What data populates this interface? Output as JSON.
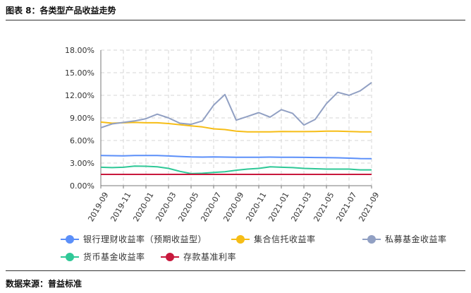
{
  "header": {
    "title": "图表 8：各类型产品收益走势"
  },
  "footer": {
    "source": "数据来源：普益标准"
  },
  "chart_data": {
    "type": "line",
    "categories": [
      "2019-09",
      "2019-10",
      "2019-11",
      "2019-12",
      "2020-01",
      "2020-02",
      "2020-03",
      "2020-04",
      "2020-05",
      "2020-06",
      "2020-07",
      "2020-08",
      "2020-09",
      "2020-10",
      "2020-11",
      "2020-12",
      "2021-01",
      "2021-02",
      "2021-03",
      "2021-04",
      "2021-05",
      "2021-06",
      "2021-07",
      "2021-08",
      "2021-09"
    ],
    "tick_labels": [
      "2019-09",
      "2019-11",
      "2020-01",
      "2020-03",
      "2020-05",
      "2020-07",
      "2020-09",
      "2020-11",
      "2021-01",
      "2021-03",
      "2021-05",
      "2021-07",
      "2021-09"
    ],
    "ylim": [
      0,
      18
    ],
    "yticks": [
      "0.00%",
      "3.00%",
      "6.00%",
      "9.00%",
      "12.00%",
      "15.00%",
      "18.00%"
    ],
    "grid": true,
    "legend_position": "bottom",
    "series": [
      {
        "name": "银行理财收益率（预期收益型）",
        "color": "#5b8ff9",
        "values": [
          4.0,
          3.98,
          3.96,
          4.0,
          4.0,
          4.0,
          3.95,
          3.88,
          3.82,
          3.8,
          3.82,
          3.8,
          3.78,
          3.78,
          3.78,
          3.8,
          3.78,
          3.78,
          3.76,
          3.74,
          3.72,
          3.7,
          3.66,
          3.6,
          3.58
        ]
      },
      {
        "name": "集合信托收益率",
        "color": "#f6bd16",
        "values": [
          8.45,
          8.3,
          8.35,
          8.4,
          8.35,
          8.35,
          8.25,
          8.1,
          7.95,
          7.8,
          7.55,
          7.45,
          7.25,
          7.15,
          7.15,
          7.15,
          7.2,
          7.18,
          7.18,
          7.2,
          7.25,
          7.25,
          7.2,
          7.15,
          7.15
        ]
      },
      {
        "name": "私募基金收益率",
        "color": "#91a0c3",
        "values": [
          7.7,
          8.2,
          8.4,
          8.6,
          8.9,
          9.5,
          9.0,
          8.3,
          8.15,
          8.6,
          10.7,
          12.1,
          8.7,
          9.2,
          9.7,
          9.1,
          10.1,
          9.6,
          8.05,
          8.8,
          10.9,
          12.4,
          12.0,
          12.6,
          13.7
        ]
      },
      {
        "name": "货币基金收益率",
        "color": "#2fc897",
        "values": [
          2.45,
          2.4,
          2.45,
          2.6,
          2.58,
          2.5,
          2.3,
          1.9,
          1.6,
          1.65,
          1.75,
          1.85,
          2.05,
          2.2,
          2.3,
          2.5,
          2.45,
          2.4,
          2.3,
          2.25,
          2.2,
          2.2,
          2.2,
          2.1,
          2.1
        ]
      },
      {
        "name": "存款基准利率",
        "color": "#c8183c",
        "values": [
          1.5,
          1.5,
          1.5,
          1.5,
          1.5,
          1.5,
          1.5,
          1.5,
          1.5,
          1.5,
          1.5,
          1.5,
          1.5,
          1.5,
          1.5,
          1.5,
          1.5,
          1.5,
          1.5,
          1.5,
          1.5,
          1.5,
          1.5,
          1.5,
          1.5
        ]
      }
    ]
  }
}
